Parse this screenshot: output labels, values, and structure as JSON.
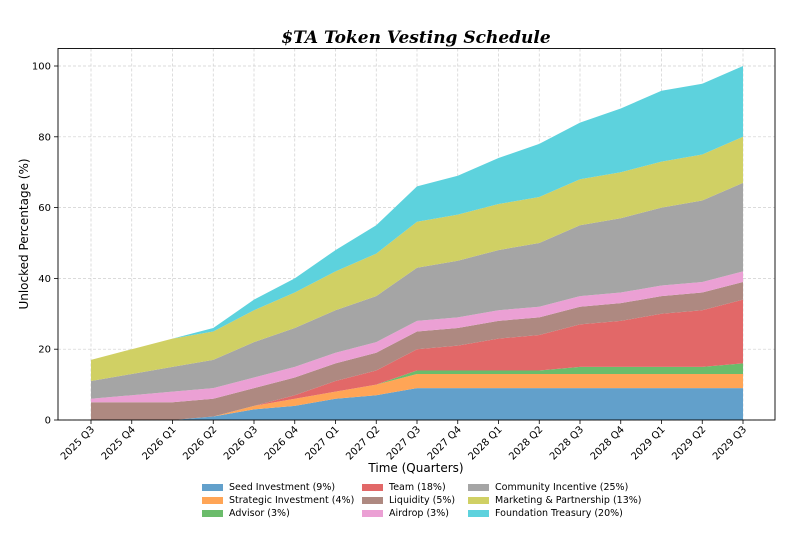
{
  "chart_data": {
    "type": "area",
    "stacked": true,
    "title": "$TA Token Vesting Schedule",
    "xlabel": "Time (Quarters)",
    "ylabel": "Unlocked Percentage (%)",
    "ylim": [
      0,
      105
    ],
    "yticks": [
      0,
      20,
      40,
      60,
      80,
      100
    ],
    "grid": true,
    "legend_position": "bottom-center",
    "categories": [
      "2025 Q3",
      "2025 Q4",
      "2026 Q1",
      "2026 Q2",
      "2026 Q3",
      "2026 Q4",
      "2027 Q1",
      "2027 Q2",
      "2027 Q3",
      "2027 Q4",
      "2028 Q1",
      "2028 Q2",
      "2028 Q3",
      "2028 Q4",
      "2029 Q1",
      "2029 Q2",
      "2029 Q3"
    ],
    "series": [
      {
        "name": "Seed Investment (9%)",
        "color": "#62a0cb",
        "values": [
          0,
          0,
          0,
          1,
          3,
          4,
          6,
          7,
          9,
          9,
          9,
          9,
          9,
          9,
          9,
          9,
          9
        ]
      },
      {
        "name": "Strategic Investment (4%)",
        "color": "#ffa556",
        "values": [
          0,
          0,
          0,
          0,
          1,
          2,
          2,
          3,
          4,
          4,
          4,
          4,
          4,
          4,
          4,
          4,
          4
        ]
      },
      {
        "name": "Advisor (3%)",
        "color": "#6bbc6b",
        "values": [
          0,
          0,
          0,
          0,
          0,
          0,
          0,
          0,
          1,
          1,
          1,
          1,
          2,
          2,
          2,
          2,
          3
        ]
      },
      {
        "name": "Team (18%)",
        "color": "#e26868",
        "values": [
          0,
          0,
          0,
          0,
          0,
          1,
          3,
          4,
          6,
          7,
          9,
          10,
          12,
          13,
          15,
          16,
          18
        ]
      },
      {
        "name": "Liquidity (5%)",
        "color": "#ae8981",
        "values": [
          5,
          5,
          5,
          5,
          5,
          5,
          5,
          5,
          5,
          5,
          5,
          5,
          5,
          5,
          5,
          5,
          5
        ]
      },
      {
        "name": "Airdrop (3%)",
        "color": "#eba0d4",
        "values": [
          1,
          2,
          3,
          3,
          3,
          3,
          3,
          3,
          3,
          3,
          3,
          3,
          3,
          3,
          3,
          3,
          3
        ]
      },
      {
        "name": "Community Incentive (25%)",
        "color": "#a5a5a5",
        "values": [
          5,
          6,
          7,
          8,
          10,
          11,
          12,
          13,
          15,
          16,
          17,
          18,
          20,
          21,
          22,
          23,
          25
        ]
      },
      {
        "name": "Marketing & Partnership (13%)",
        "color": "#d0d064",
        "values": [
          6,
          7,
          8,
          8,
          9,
          10,
          11,
          12,
          13,
          13,
          13,
          13,
          13,
          13,
          13,
          13,
          13
        ]
      },
      {
        "name": "Foundation Treasury (20%)",
        "color": "#5dd2dd",
        "values": [
          0,
          0,
          0,
          1,
          3,
          4,
          6,
          8,
          10,
          11,
          13,
          15,
          16,
          18,
          20,
          20,
          20
        ]
      }
    ],
    "legend_order": [
      0,
      1,
      2,
      3,
      4,
      5,
      6,
      7,
      8
    ]
  }
}
